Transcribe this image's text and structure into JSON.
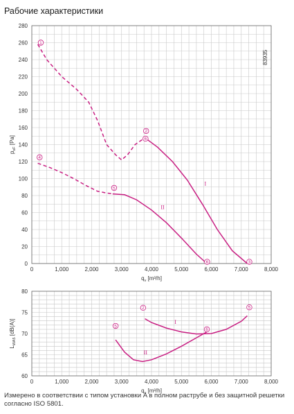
{
  "title": "Рабочие характеристики",
  "figure_id": "83935",
  "footnote": "Измерено в соответствии с типом установки A в полном раструбе и без защитной решетки согласно ISO 5801.",
  "colors": {
    "curve": "#c81e82",
    "grid": "#c8c8c8"
  },
  "chart_data": [
    {
      "type": "line",
      "xlabel": "q",
      "xlabel_sub": "v",
      "xlabel_unit": "[m³/h]",
      "ylabel": "p",
      "ylabel_sub": "sF",
      "ylabel_unit": "[Pa]",
      "xlim": [
        0,
        8000
      ],
      "ylim": [
        0,
        280
      ],
      "x_ticks": [
        0,
        1000,
        2000,
        3000,
        4000,
        5000,
        6000,
        7000,
        8000
      ],
      "x_tick_labels": [
        "0",
        "1,000",
        "2,000",
        "3,000",
        "4,000",
        "5,000",
        "6,000",
        "7,000",
        "8,000"
      ],
      "y_ticks": [
        0,
        20,
        40,
        60,
        80,
        100,
        120,
        140,
        160,
        180,
        200,
        220,
        240,
        260,
        280
      ],
      "y_tick_labels": [
        "0",
        "20",
        "40",
        "60",
        "80",
        "100",
        "120",
        "140",
        "160",
        "180",
        "200",
        "220",
        "240",
        "260",
        "280"
      ],
      "x_grid_step": 250,
      "y_grid_step": 10,
      "series": [
        {
          "name": "I",
          "style": "solid",
          "x": [
            3780,
            4200,
            4700,
            5200,
            5700,
            6200,
            6700,
            7200
          ],
          "y": [
            148,
            137,
            120,
            98,
            70,
            40,
            15,
            0
          ]
        },
        {
          "name": "I",
          "style": "dashed",
          "x": [
            200,
            500,
            1000,
            1500,
            1900,
            2200,
            2500,
            2800,
            3000,
            3200,
            3450,
            3780
          ],
          "y": [
            258,
            240,
            220,
            205,
            190,
            168,
            140,
            128,
            122,
            128,
            140,
            148
          ]
        },
        {
          "name": "II",
          "style": "solid",
          "x": [
            2700,
            3100,
            3500,
            4000,
            4500,
            5000,
            5500,
            5850
          ],
          "y": [
            82,
            81,
            75,
            63,
            48,
            30,
            11,
            0
          ]
        },
        {
          "name": "II",
          "style": "dashed",
          "x": [
            200,
            600,
            1000,
            1400,
            1800,
            2200,
            2500,
            2700
          ],
          "y": [
            118,
            113,
            107,
            100,
            92,
            85,
            83,
            82
          ]
        }
      ],
      "markers": [
        {
          "label": "1",
          "x": 300,
          "y": 260
        },
        {
          "label": "2",
          "x": 3820,
          "y": 156
        },
        {
          "label": "3",
          "x": 7270,
          "y": 2
        },
        {
          "label": "4",
          "x": 260,
          "y": 125
        },
        {
          "label": "5",
          "x": 2750,
          "y": 89
        },
        {
          "label": "6",
          "x": 5860,
          "y": 2
        },
        {
          "label": "6",
          "x": 3800,
          "y": 147
        }
      ],
      "curve_labels": [
        {
          "label": "I",
          "x": 5800,
          "y": 92
        },
        {
          "label": "II",
          "x": 4370,
          "y": 64
        }
      ]
    },
    {
      "type": "line",
      "xlabel": "q",
      "xlabel_sub": "v",
      "xlabel_unit": "[m³/h]",
      "ylabel": "L",
      "ylabel_sub": "WA5",
      "ylabel_unit": "[dB(A)]",
      "xlim": [
        0,
        8000
      ],
      "ylim": [
        60,
        80
      ],
      "x_ticks": [
        0,
        1000,
        2000,
        3000,
        4000,
        5000,
        6000,
        7000,
        8000
      ],
      "x_tick_labels": [
        "0",
        "1,000",
        "2,000",
        "3,000",
        "4,000",
        "5,000",
        "6,000",
        "7,000",
        "8,000"
      ],
      "y_ticks": [
        60,
        65,
        70,
        75,
        80
      ],
      "y_tick_labels": [
        "60",
        "65",
        "70",
        "75",
        "80"
      ],
      "x_grid_step": 250,
      "y_grid_step": 1,
      "series": [
        {
          "name": "I",
          "style": "solid",
          "x": [
            3780,
            4000,
            4500,
            5000,
            5500,
            6000,
            6500,
            7000,
            7200
          ],
          "y": [
            73.5,
            72.6,
            71.3,
            70.4,
            69.9,
            70.0,
            71.0,
            72.9,
            74.2
          ]
        },
        {
          "name": "II",
          "style": "solid",
          "x": [
            2800,
            3100,
            3400,
            3700,
            4000,
            4500,
            5000,
            5500,
            5850
          ],
          "y": [
            68.5,
            65.6,
            63.8,
            63.4,
            63.8,
            65.2,
            67.0,
            69.0,
            70.4
          ]
        }
      ],
      "markers": [
        {
          "label": "2",
          "x": 3720,
          "y": 76.1
        },
        {
          "label": "5",
          "x": 2800,
          "y": 71.8
        },
        {
          "label": "5",
          "x": 7270,
          "y": 76.2
        },
        {
          "label": "6",
          "x": 5850,
          "y": 71.0
        }
      ],
      "curve_labels": [
        {
          "label": "I",
          "x": 4800,
          "y": 72.3
        },
        {
          "label": "II",
          "x": 3800,
          "y": 65.1
        }
      ]
    }
  ]
}
